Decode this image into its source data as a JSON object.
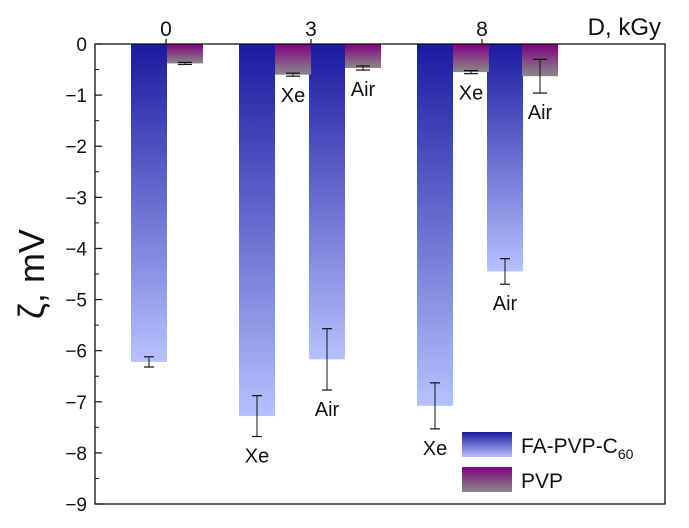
{
  "chart_data": {
    "type": "bar",
    "title": "",
    "xlabel": "D, kGy",
    "ylabel": "ζ, mV",
    "ylim": [
      -9,
      0
    ],
    "yticks": [
      0,
      -1,
      -2,
      -3,
      -4,
      -5,
      -6,
      -7,
      -8,
      -9
    ],
    "ytick_labels": [
      "0",
      "−1",
      "−2",
      "−3",
      "−4",
      "−5",
      "−6",
      "−7",
      "−8",
      "−9"
    ],
    "dose_groups": [
      "0",
      "3",
      "8"
    ],
    "legend_position": "bottom-right",
    "series": [
      {
        "name": "FA-PVP-C",
        "name_subscript": "60",
        "color_top": "#1a1aa0",
        "color_bottom": "#b6c2ff",
        "bars": [
          {
            "group": "0",
            "label": "",
            "value": -6.22,
            "error": 0.1
          },
          {
            "group": "3",
            "label": "Xe",
            "value": -7.28,
            "error": 0.4
          },
          {
            "group": "3",
            "label": "Air",
            "value": -6.17,
            "error": 0.6
          },
          {
            "group": "8",
            "label": "Xe",
            "value": -7.08,
            "error": 0.45
          },
          {
            "group": "8",
            "label": "Air",
            "value": -4.45,
            "error": 0.25
          }
        ]
      },
      {
        "name": "PVP",
        "color_top": "#800080",
        "color_bottom": "#8a8a8a",
        "bars": [
          {
            "group": "0",
            "label": "",
            "value": -0.38,
            "error": 0.02
          },
          {
            "group": "3",
            "label": "Xe",
            "value": -0.6,
            "error": 0.03
          },
          {
            "group": "3",
            "label": "Air",
            "value": -0.47,
            "error": 0.04
          },
          {
            "group": "8",
            "label": "Xe",
            "value": -0.55,
            "error": 0.03
          },
          {
            "group": "8",
            "label": "Air",
            "value": -0.63,
            "error": 0.33
          }
        ]
      }
    ]
  }
}
